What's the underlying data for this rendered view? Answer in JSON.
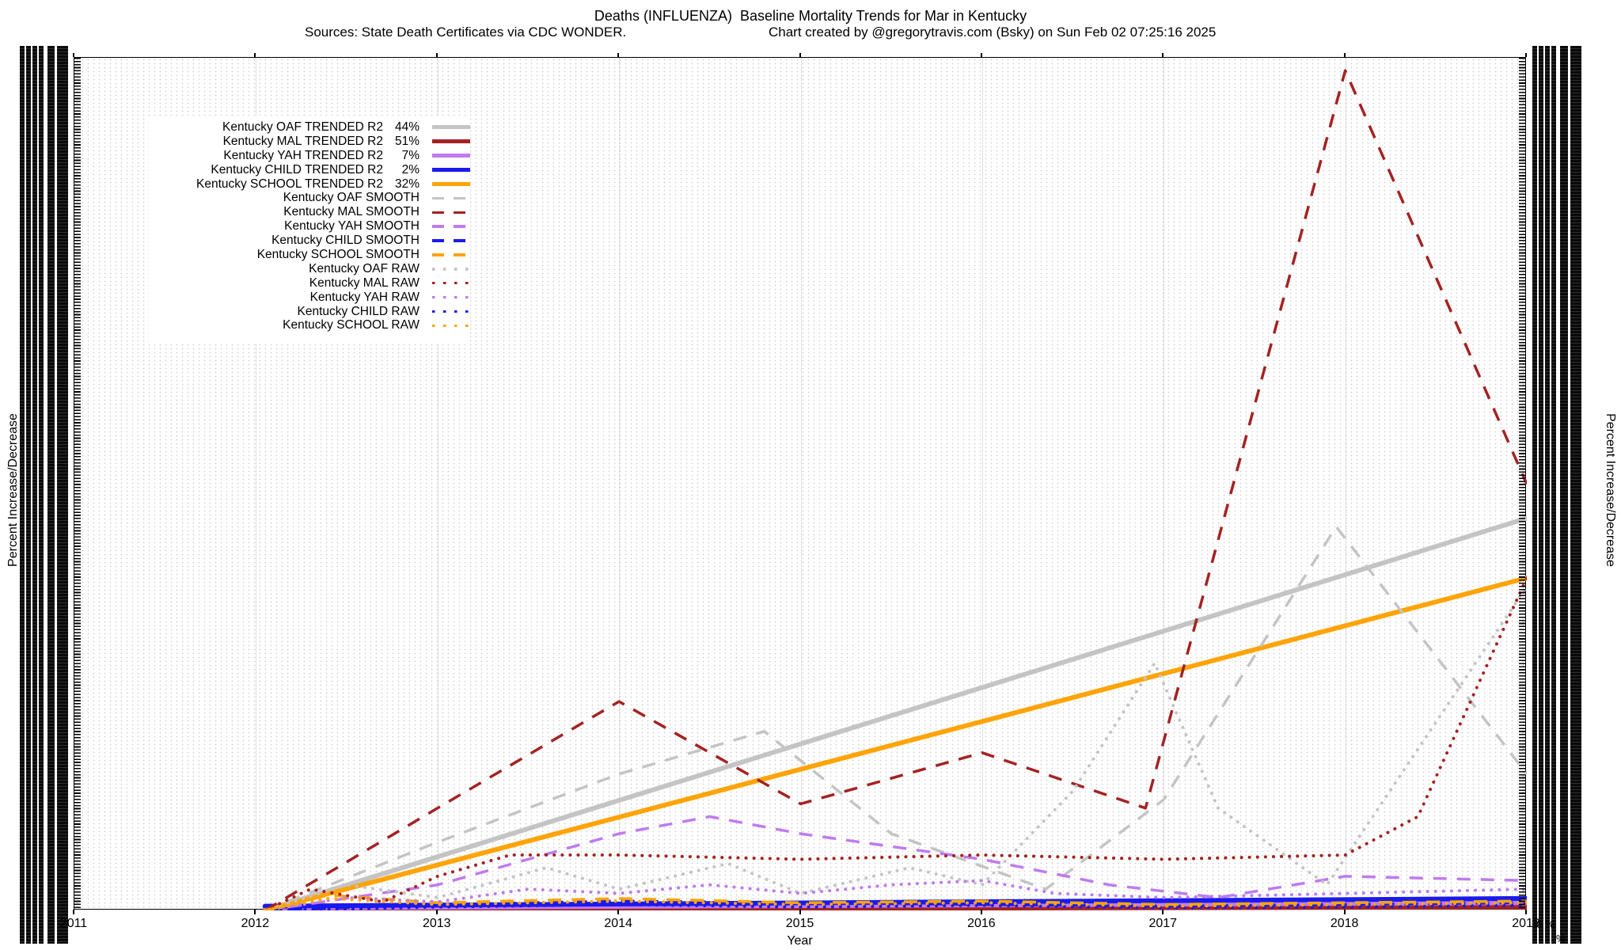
{
  "title": "Deaths (INFLUENZA)  Baseline Mortality Trends for Mar in Kentucky",
  "subtitle": {
    "sources": "Sources: State Death Certificates via CDC WONDER.",
    "credit": "Chart created by @gregorytravis.com (Bsky) on Sun Feb 02 07:25:16 2025"
  },
  "x_axis": {
    "label": "Year",
    "ticks": [
      "2011",
      "2012",
      "2013",
      "2014",
      "2015",
      "2016",
      "2017",
      "2018",
      "2019"
    ]
  },
  "y_axis_left": {
    "label": "Percent Increase/Decrease",
    "tick_labels_overlapping_illegible": true
  },
  "y_axis_right": {
    "label": "Percent Increase/Decrease",
    "tick_labels_overlapping_illegible": true,
    "fragments": [
      "0 %",
      "%"
    ]
  },
  "chart_data": {
    "type": "line",
    "title": "Deaths (INFLUENZA)  Baseline Mortality Trends for Mar in Kentucky",
    "xlabel": "Year",
    "ylabel": "Percent Increase/Decrease",
    "x_range": [
      2011,
      2019
    ],
    "y_unit": "percent of plot height (y-axis tick labels illegible due to overlap)",
    "grid": "fine dotted grid, dotted vertical line per year",
    "legend_position": "upper left",
    "series": [
      {
        "name": "oaf-trended",
        "label": "Kentucky OAF TRENDED R2",
        "r2": "44%",
        "color": "#c4c4c4",
        "style": "trend",
        "points": [
          [
            2012.05,
            0
          ],
          [
            2019,
            46
          ]
        ]
      },
      {
        "name": "mal-trended",
        "label": "Kentucky MAL TRENDED R2",
        "r2": "51%",
        "color": "#a32322",
        "style": "trend",
        "points": [
          [
            2012.05,
            0.1
          ],
          [
            2019,
            0.4
          ]
        ]
      },
      {
        "name": "yah-trended",
        "label": "Kentucky YAH TRENDED R2",
        "r2": "7%",
        "color": "#bf7bef",
        "style": "trend",
        "points": [
          [
            2012.05,
            0.3
          ],
          [
            2019,
            0.9
          ]
        ]
      },
      {
        "name": "child-trended",
        "label": "Kentucky CHILD TRENDED R2",
        "r2": "2%",
        "color": "#1a1aee",
        "style": "trend",
        "points": [
          [
            2012.05,
            0.5
          ],
          [
            2019,
            1.4
          ]
        ]
      },
      {
        "name": "school-trended",
        "label": "Kentucky SCHOOL TRENDED R2",
        "r2": "32%",
        "color": "#ffa408",
        "style": "trend",
        "points": [
          [
            2012.05,
            0
          ],
          [
            2019,
            39
          ]
        ]
      },
      {
        "name": "oaf-smooth",
        "label": "Kentucky OAF SMOOTH",
        "r2": null,
        "color": "#c4c4c4",
        "style": "smooth",
        "points": [
          [
            2012.05,
            0
          ],
          [
            2013,
            8
          ],
          [
            2014,
            16
          ],
          [
            2014.8,
            21
          ],
          [
            2015.5,
            9
          ],
          [
            2016.35,
            2.5
          ],
          [
            2017,
            13
          ],
          [
            2017.95,
            45
          ],
          [
            2019,
            16
          ]
        ]
      },
      {
        "name": "mal-smooth",
        "label": "Kentucky MAL SMOOTH",
        "r2": null,
        "color": "#a32322",
        "style": "smooth",
        "points": [
          [
            2012.05,
            0
          ],
          [
            2013,
            12
          ],
          [
            2014,
            24.5
          ],
          [
            2015,
            12.5
          ],
          [
            2016,
            18.5
          ],
          [
            2016.9,
            12
          ],
          [
            2018,
            98.5
          ],
          [
            2019,
            50
          ]
        ]
      },
      {
        "name": "yah-smooth",
        "label": "Kentucky YAH SMOOTH",
        "r2": null,
        "color": "#bf7bef",
        "style": "smooth",
        "points": [
          [
            2012.05,
            0
          ],
          [
            2013,
            3
          ],
          [
            2014,
            9
          ],
          [
            2014.5,
            11
          ],
          [
            2015,
            9
          ],
          [
            2016,
            6
          ],
          [
            2016.7,
            3
          ],
          [
            2017.3,
            1.5
          ],
          [
            2018,
            4
          ],
          [
            2019,
            3.5
          ]
        ]
      },
      {
        "name": "child-smooth",
        "label": "Kentucky CHILD SMOOTH",
        "r2": null,
        "color": "#1a1aee",
        "style": "smooth",
        "points": [
          [
            2012.05,
            0
          ],
          [
            2013,
            0.7
          ],
          [
            2014,
            1.1
          ],
          [
            2015,
            0.9
          ],
          [
            2016,
            0.7
          ],
          [
            2017,
            0.5
          ],
          [
            2018,
            0.7
          ],
          [
            2019,
            0.9
          ]
        ]
      },
      {
        "name": "school-smooth",
        "label": "Kentucky SCHOOL SMOOTH",
        "r2": null,
        "color": "#ffa408",
        "style": "smooth",
        "points": [
          [
            2012.05,
            0
          ],
          [
            2012.4,
            1.8
          ],
          [
            2013,
            0.9
          ],
          [
            2014,
            1.4
          ],
          [
            2015,
            0.9
          ],
          [
            2016,
            1.1
          ],
          [
            2017,
            0.7
          ],
          [
            2018,
            0.9
          ],
          [
            2019,
            1.1
          ]
        ]
      },
      {
        "name": "oaf-raw",
        "label": "Kentucky OAF RAW",
        "r2": null,
        "color": "#c4c4c4",
        "style": "raw",
        "points": [
          [
            2012.05,
            0
          ],
          [
            2012.5,
            3
          ],
          [
            2013,
            1.5
          ],
          [
            2013.6,
            5
          ],
          [
            2014,
            2.5
          ],
          [
            2014.6,
            5.5
          ],
          [
            2015,
            2
          ],
          [
            2015.6,
            5
          ],
          [
            2016,
            3
          ],
          [
            2016.5,
            14
          ],
          [
            2016.95,
            29
          ],
          [
            2017.3,
            12
          ],
          [
            2017.9,
            3
          ],
          [
            2019,
            38
          ]
        ]
      },
      {
        "name": "mal-raw",
        "label": "Kentucky MAL RAW",
        "r2": null,
        "color": "#a32322",
        "style": "raw",
        "points": [
          [
            2012.05,
            0
          ],
          [
            2012.3,
            2.5
          ],
          [
            2012.7,
            1
          ],
          [
            2013,
            4
          ],
          [
            2013.4,
            6.5
          ],
          [
            2014,
            6.5
          ],
          [
            2015,
            6
          ],
          [
            2016,
            6.5
          ],
          [
            2017,
            6
          ],
          [
            2018,
            6.5
          ],
          [
            2018.4,
            11
          ],
          [
            2019,
            39
          ]
        ]
      },
      {
        "name": "yah-raw",
        "label": "Kentucky YAH RAW",
        "r2": null,
        "color": "#bf7bef",
        "style": "raw",
        "points": [
          [
            2012.05,
            0
          ],
          [
            2012.5,
            1.5
          ],
          [
            2013,
            1
          ],
          [
            2013.5,
            2.5
          ],
          [
            2014,
            2
          ],
          [
            2014.5,
            3
          ],
          [
            2015,
            2
          ],
          [
            2015.5,
            3
          ],
          [
            2016,
            3.5
          ],
          [
            2016.4,
            2
          ],
          [
            2017,
            1.5
          ],
          [
            2018,
            2
          ],
          [
            2019,
            2.5
          ]
        ]
      },
      {
        "name": "child-raw",
        "label": "Kentucky CHILD RAW",
        "r2": null,
        "color": "#1a1aee",
        "style": "raw",
        "points": [
          [
            2012.05,
            0
          ],
          [
            2013,
            0.4
          ],
          [
            2014,
            0.7
          ],
          [
            2015,
            0.4
          ],
          [
            2016,
            0.6
          ],
          [
            2017,
            0.3
          ],
          [
            2018,
            0.4
          ],
          [
            2019,
            0.6
          ]
        ]
      },
      {
        "name": "school-raw",
        "label": "Kentucky SCHOOL RAW",
        "r2": null,
        "color": "#ffa408",
        "style": "raw",
        "points": [
          [
            2012.05,
            0
          ],
          [
            2012.4,
            1.4
          ],
          [
            2013,
            0.7
          ],
          [
            2014,
            1.1
          ],
          [
            2015,
            0.7
          ],
          [
            2016,
            0.9
          ],
          [
            2017,
            0.5
          ],
          [
            2018,
            0.7
          ],
          [
            2019,
            0.9
          ]
        ]
      }
    ]
  }
}
